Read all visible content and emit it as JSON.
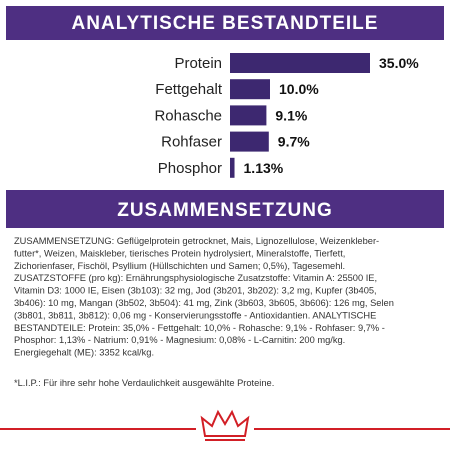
{
  "chart_data": {
    "type": "bar",
    "orientation": "horizontal",
    "title": "ANALYTISCHE BESTANDTEILE",
    "categories": [
      "Protein",
      "Fettgehalt",
      "Rohasche",
      "Rohfaser",
      "Phosphor"
    ],
    "values": [
      35.0,
      10.0,
      9.1,
      9.7,
      1.13
    ],
    "value_labels": [
      "35.0%",
      "10.0%",
      "9.1%",
      "9.7%",
      "1.13%"
    ],
    "color": "#3d2870"
  },
  "composition": {
    "title": "ZUSAMMENSETZUNG",
    "lines": [
      "ZUSAMMENSETZUNG: Geflügelprotein getrocknet, Mais, Lignozellulose, Weizenkleber-",
      "futter*, Weizen, Maiskleber, tierisches Protein hydrolysiert, Mineralstoffe, Tierfett,",
      "Zichorienfaser, Fischöl, Psyllium (Hüllschichten und Samen; 0,5%), Tagesemehl.",
      "ZUSATZSTOFFE (pro kg): Ernährungsphysiologische Zusatzstoffe: Vitamin A: 25500 IE,",
      "Vitamin D3: 1000 IE, Eisen (3b103): 32 mg, Jod (3b201, 3b202): 3,2 mg, Kupfer (3b405,",
      "3b406): 10 mg, Mangan (3b502, 3b504): 41 mg, Zink (3b603, 3b605, 3b606): 126 mg, Selen",
      "(3b801, 3b811, 3b812): 0,06 mg - Konservierungsstoffe - Antioxidantien. ANALYTISCHE",
      "BESTANDTEILE: Protein: 35,0% - Fettgehalt: 10,0% - Rohasche: 9,1% - Rohfaser: 9,7% -",
      "Phosphor: 1,13% - Natrium: 0,91% - Magnesium: 0,08% - L-Carnitin: 200 mg/kg.",
      "Energiegehalt (ME): 3352 kcal/kg."
    ]
  },
  "footnote": "*L.I.P.: Für ihre sehr hohe Verdaulichkeit ausgewählte Proteine."
}
